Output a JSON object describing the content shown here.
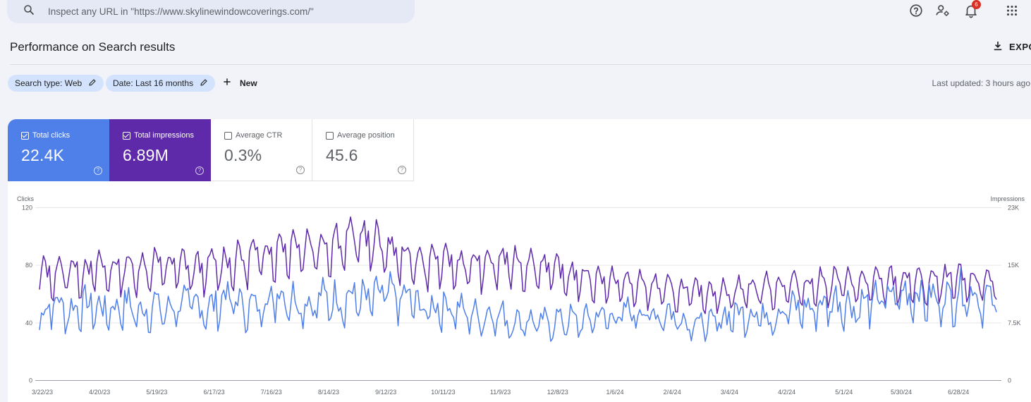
{
  "search": {
    "placeholder": "Inspect any URL in \"https://www.skylinewindowcoverings.com/\"",
    "icon": "search-icon"
  },
  "top_icons": {
    "help": "help-icon",
    "account_settings": "manage-accounts-icon",
    "notifications": "bell-icon",
    "notification_count": "6",
    "apps": "apps-grid-icon"
  },
  "header": {
    "title": "Performance on Search results",
    "export_label": "EXPORT"
  },
  "filters": {
    "chips": [
      {
        "label": "Search type: Web"
      },
      {
        "label": "Date: Last 16 months"
      }
    ],
    "new_label": "New",
    "last_updated": "Last updated: 3 hours ago"
  },
  "metrics": [
    {
      "label": "Total clicks",
      "value": "22.4K",
      "checked": true,
      "color": "#4f7fe9"
    },
    {
      "label": "Total impressions",
      "value": "6.89M",
      "checked": true,
      "color": "#5e2aaa"
    },
    {
      "label": "Average CTR",
      "value": "0.3%",
      "checked": false
    },
    {
      "label": "Average position",
      "value": "45.6",
      "checked": false
    }
  ],
  "chart_data": {
    "type": "line",
    "left_axis": {
      "label": "Clicks",
      "min": 0,
      "max": 120,
      "ticks": [
        "0",
        "40",
        "80",
        "120"
      ]
    },
    "right_axis": {
      "label": "Impressions",
      "min": 0,
      "max": 23000,
      "ticks": [
        "0",
        "7.5K",
        "15K",
        "23K"
      ]
    },
    "x_tick_labels": [
      "3/22/23",
      "4/20/23",
      "5/19/23",
      "6/17/23",
      "7/16/23",
      "8/14/23",
      "9/12/23",
      "10/11/23",
      "11/9/23",
      "12/8/23",
      "1/6/24",
      "2/4/24",
      "3/4/24",
      "4/2/24",
      "5/1/24",
      "5/30/24",
      "6/28/24"
    ],
    "grid": true,
    "series": [
      {
        "name": "Clicks",
        "axis": "left",
        "color": "#4f7fe9",
        "x_start": "3/22/23",
        "x_end": "7/18/24",
        "weekly_values": [
          43,
          55,
          47,
          52,
          50,
          48,
          53,
          46,
          52,
          47,
          55,
          51,
          49,
          58,
          52,
          50,
          56,
          60,
          55,
          52,
          57,
          55,
          58,
          54,
          60,
          57,
          56,
          48,
          52,
          50,
          46,
          44,
          47,
          40,
          42,
          39,
          41,
          42,
          40,
          45,
          43,
          46,
          48,
          44,
          47,
          42,
          40,
          38,
          44,
          46,
          47,
          44,
          48,
          50,
          49,
          52,
          55,
          50,
          53,
          56,
          58,
          60,
          57,
          55,
          58,
          62,
          56,
          54
        ]
      },
      {
        "name": "Impressions",
        "axis": "right",
        "color": "#5e2aaa",
        "x_start": "3/22/23",
        "x_end": "7/18/24",
        "weekly_values": [
          14200,
          14000,
          14600,
          14300,
          14800,
          14400,
          15000,
          14600,
          15300,
          14900,
          15200,
          14500,
          15100,
          15400,
          15800,
          16300,
          17000,
          17400,
          18000,
          17600,
          17900,
          18300,
          18800,
          18500,
          17800,
          16600,
          16000,
          15600,
          15700,
          15400,
          15100,
          15300,
          15400,
          15600,
          15300,
          15200,
          14500,
          13800,
          13600,
          13400,
          12900,
          12700,
          12500,
          12300,
          11900,
          11700,
          11500,
          11700,
          11600,
          12000,
          12100,
          12300,
          12400,
          12500,
          12600,
          12800,
          13000,
          12800,
          12700,
          12900,
          13000,
          13100,
          12800,
          12900,
          13200,
          12900,
          13100,
          13300
        ]
      }
    ]
  }
}
